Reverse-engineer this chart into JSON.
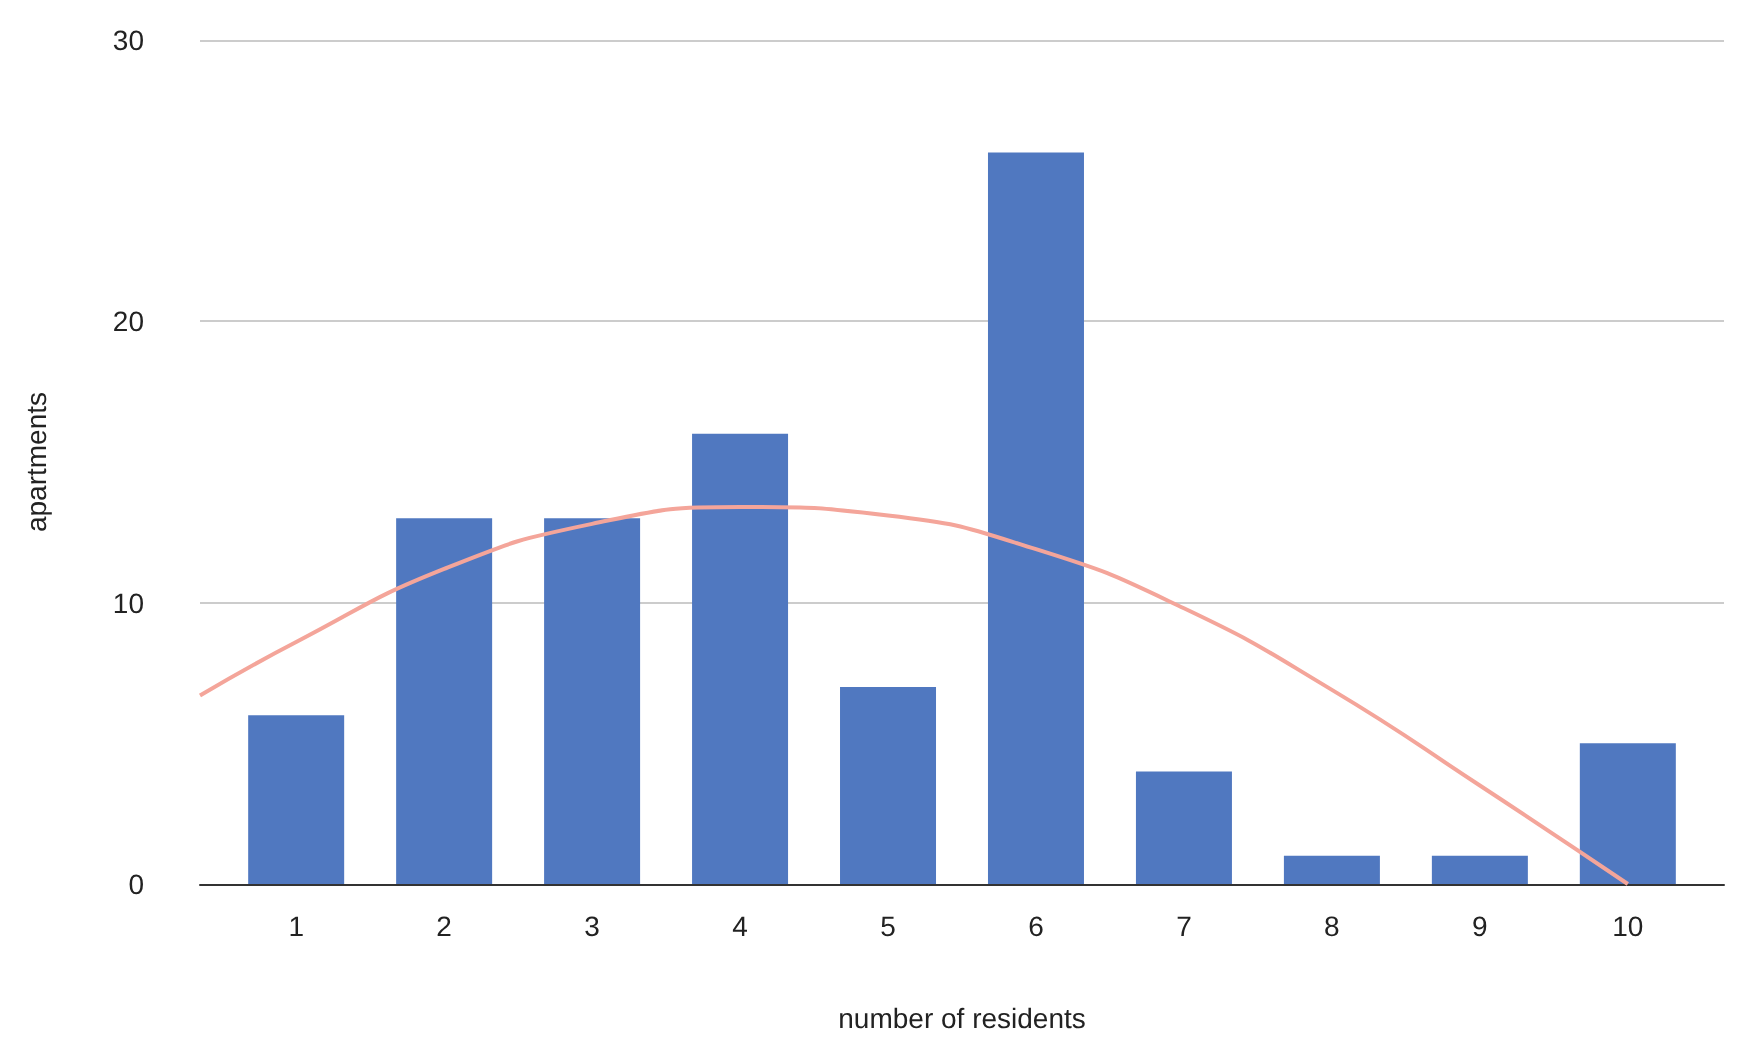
{
  "chart_data": {
    "type": "bar",
    "xlabel": "number of residents",
    "ylabel": "apartments",
    "x": [
      1,
      2,
      3,
      4,
      5,
      6,
      7,
      8,
      9,
      10
    ],
    "xlim": [
      0.35,
      10.65
    ],
    "xticks": [
      1,
      2,
      3,
      4,
      5,
      6,
      7,
      8,
      9,
      10
    ],
    "ylim": [
      0,
      30
    ],
    "yticks": [
      0,
      10,
      20,
      30
    ],
    "grid": "y",
    "series": [
      {
        "color": "#5078c0",
        "values": [
          6,
          13,
          13,
          16,
          7,
          26,
          4,
          1,
          1,
          5
        ]
      },
      {
        "type": "line",
        "color": "#f4a59a",
        "marker": "none",
        "x": [
          0.35,
          1,
          2,
          3,
          4,
          5,
          6,
          7,
          8,
          9,
          10
        ],
        "values": [
          6.7,
          8.6,
          11.2,
          12.8,
          13.4,
          13.1,
          11.9,
          9.8,
          6.9,
          3.5,
          0
        ]
      }
    ]
  }
}
